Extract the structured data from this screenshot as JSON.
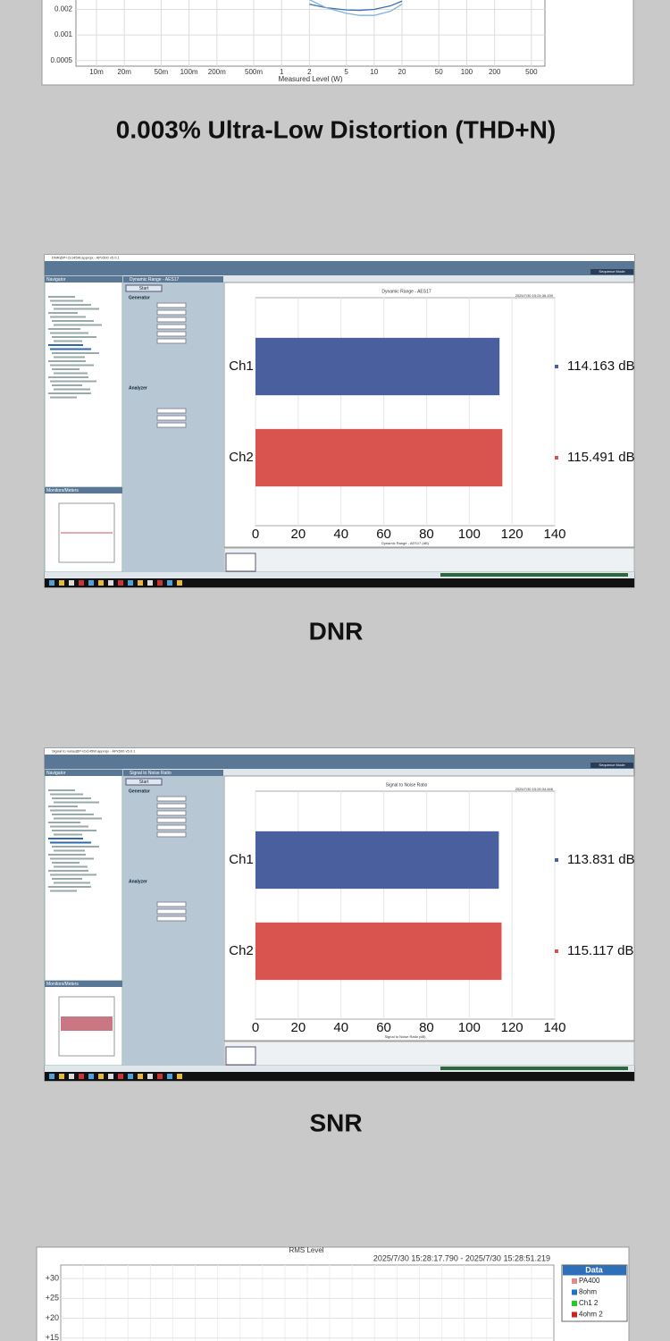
{
  "headings": [
    "0.003% Ultra-Low Distortion (THD+N)",
    "DNR",
    "SNR"
  ],
  "screenshots": [
    {
      "window_title": "DNR@P+2x145W.approjx - APx500 v5.0.1",
      "panel_title": "Dynamic Range - AES17",
      "navigator": "Navigator",
      "monitors": "Monitors/Meters",
      "start": "Start",
      "generator": "Generator",
      "analyzer": "Analyzer",
      "sequence_mode": "Sequence Mode"
    },
    {
      "window_title": "Signal to noise@P+2x145W.approjx - APx500 v5.0.1",
      "panel_title": "Signal to Noise Ratio",
      "navigator": "Navigator",
      "monitors": "Monitors/Meters",
      "start": "Start",
      "generator": "Generator",
      "analyzer": "Analyzer",
      "sequence_mode": "Sequence Mode"
    }
  ],
  "chart_data": [
    {
      "type": "line",
      "xlabel": "Measured Level (W)",
      "x_scale": "log",
      "y_scale": "log",
      "grid": true,
      "xlim": [
        0.006,
        700
      ],
      "ylim": [
        0.00043,
        0.01
      ],
      "xticks": [
        {
          "value": 0.01,
          "label": "10m"
        },
        {
          "value": 0.02,
          "label": "20m"
        },
        {
          "value": 0.05,
          "label": "50m"
        },
        {
          "value": 0.1,
          "label": "100m"
        },
        {
          "value": 0.2,
          "label": "200m"
        },
        {
          "value": 0.5,
          "label": "500m"
        },
        1,
        2,
        5,
        10,
        20,
        50,
        100,
        200,
        500
      ],
      "yticks": [
        0.0005,
        0.001,
        0.002
      ],
      "x": [
        2,
        3,
        5,
        7,
        10,
        15,
        20
      ],
      "series": [
        {
          "color": "#3a6fb0",
          "values": [
            0.0023,
            0.0021,
            0.00197,
            0.00195,
            0.002,
            0.0022,
            0.0025
          ]
        },
        {
          "color": "#7fb2de",
          "values": [
            0.0026,
            0.0021,
            0.0018,
            0.0017,
            0.0017,
            0.0019,
            0.0023
          ]
        }
      ]
    },
    {
      "type": "hbar",
      "title": "Dynamic Range - AES17",
      "timestamp": "2025/7/30 15:24:36.439",
      "xlabel": "Dynamic Range - AES17 (dB)",
      "categories": [
        "Ch1",
        "Ch2"
      ],
      "values": [
        114.163,
        115.491
      ],
      "value_labels": [
        "114.163 dB",
        "115.491 dB"
      ],
      "colors": [
        "#4a5f9e",
        "#d9534f"
      ],
      "xlim": [
        0,
        140
      ],
      "xticks": [
        0,
        20,
        40,
        60,
        80,
        100,
        120,
        140
      ],
      "grid": true
    },
    {
      "type": "hbar",
      "title": "Signal to Noise Ratio",
      "timestamp": "2025/7/30 15:26:34.846",
      "xlabel": "Signal to Noise Ratio (dB)",
      "categories": [
        "Ch1",
        "Ch2"
      ],
      "values": [
        113.831,
        115.117
      ],
      "value_labels": [
        "113.831 dB",
        "115.117 dB"
      ],
      "colors": [
        "#4a5f9e",
        "#d9534f"
      ],
      "xlim": [
        0,
        140
      ],
      "xticks": [
        0,
        20,
        40,
        60,
        80,
        100,
        120,
        140
      ],
      "grid": true
    },
    {
      "type": "line",
      "title": "RMS Level",
      "subtitle": "2025/7/30 15:28:17.790 - 2025/7/30 15:28:51.219",
      "grid": true,
      "ylim": [
        10,
        33.4
      ],
      "yticks": [
        {
          "value": 30,
          "label": "+30"
        },
        {
          "value": 25,
          "label": "+25"
        },
        {
          "value": 20,
          "label": "+20"
        },
        {
          "value": 15,
          "label": "+15"
        }
      ],
      "legend": {
        "title": "Data",
        "items": [
          {
            "name": "PA400",
            "color": "#e08a8a"
          },
          {
            "name": "8ohm",
            "color": "#1f6fd0"
          },
          {
            "name": "Ch1 2",
            "color": "#22cc22"
          },
          {
            "name": "4ohm 2",
            "color": "#d02020"
          }
        ]
      }
    }
  ]
}
